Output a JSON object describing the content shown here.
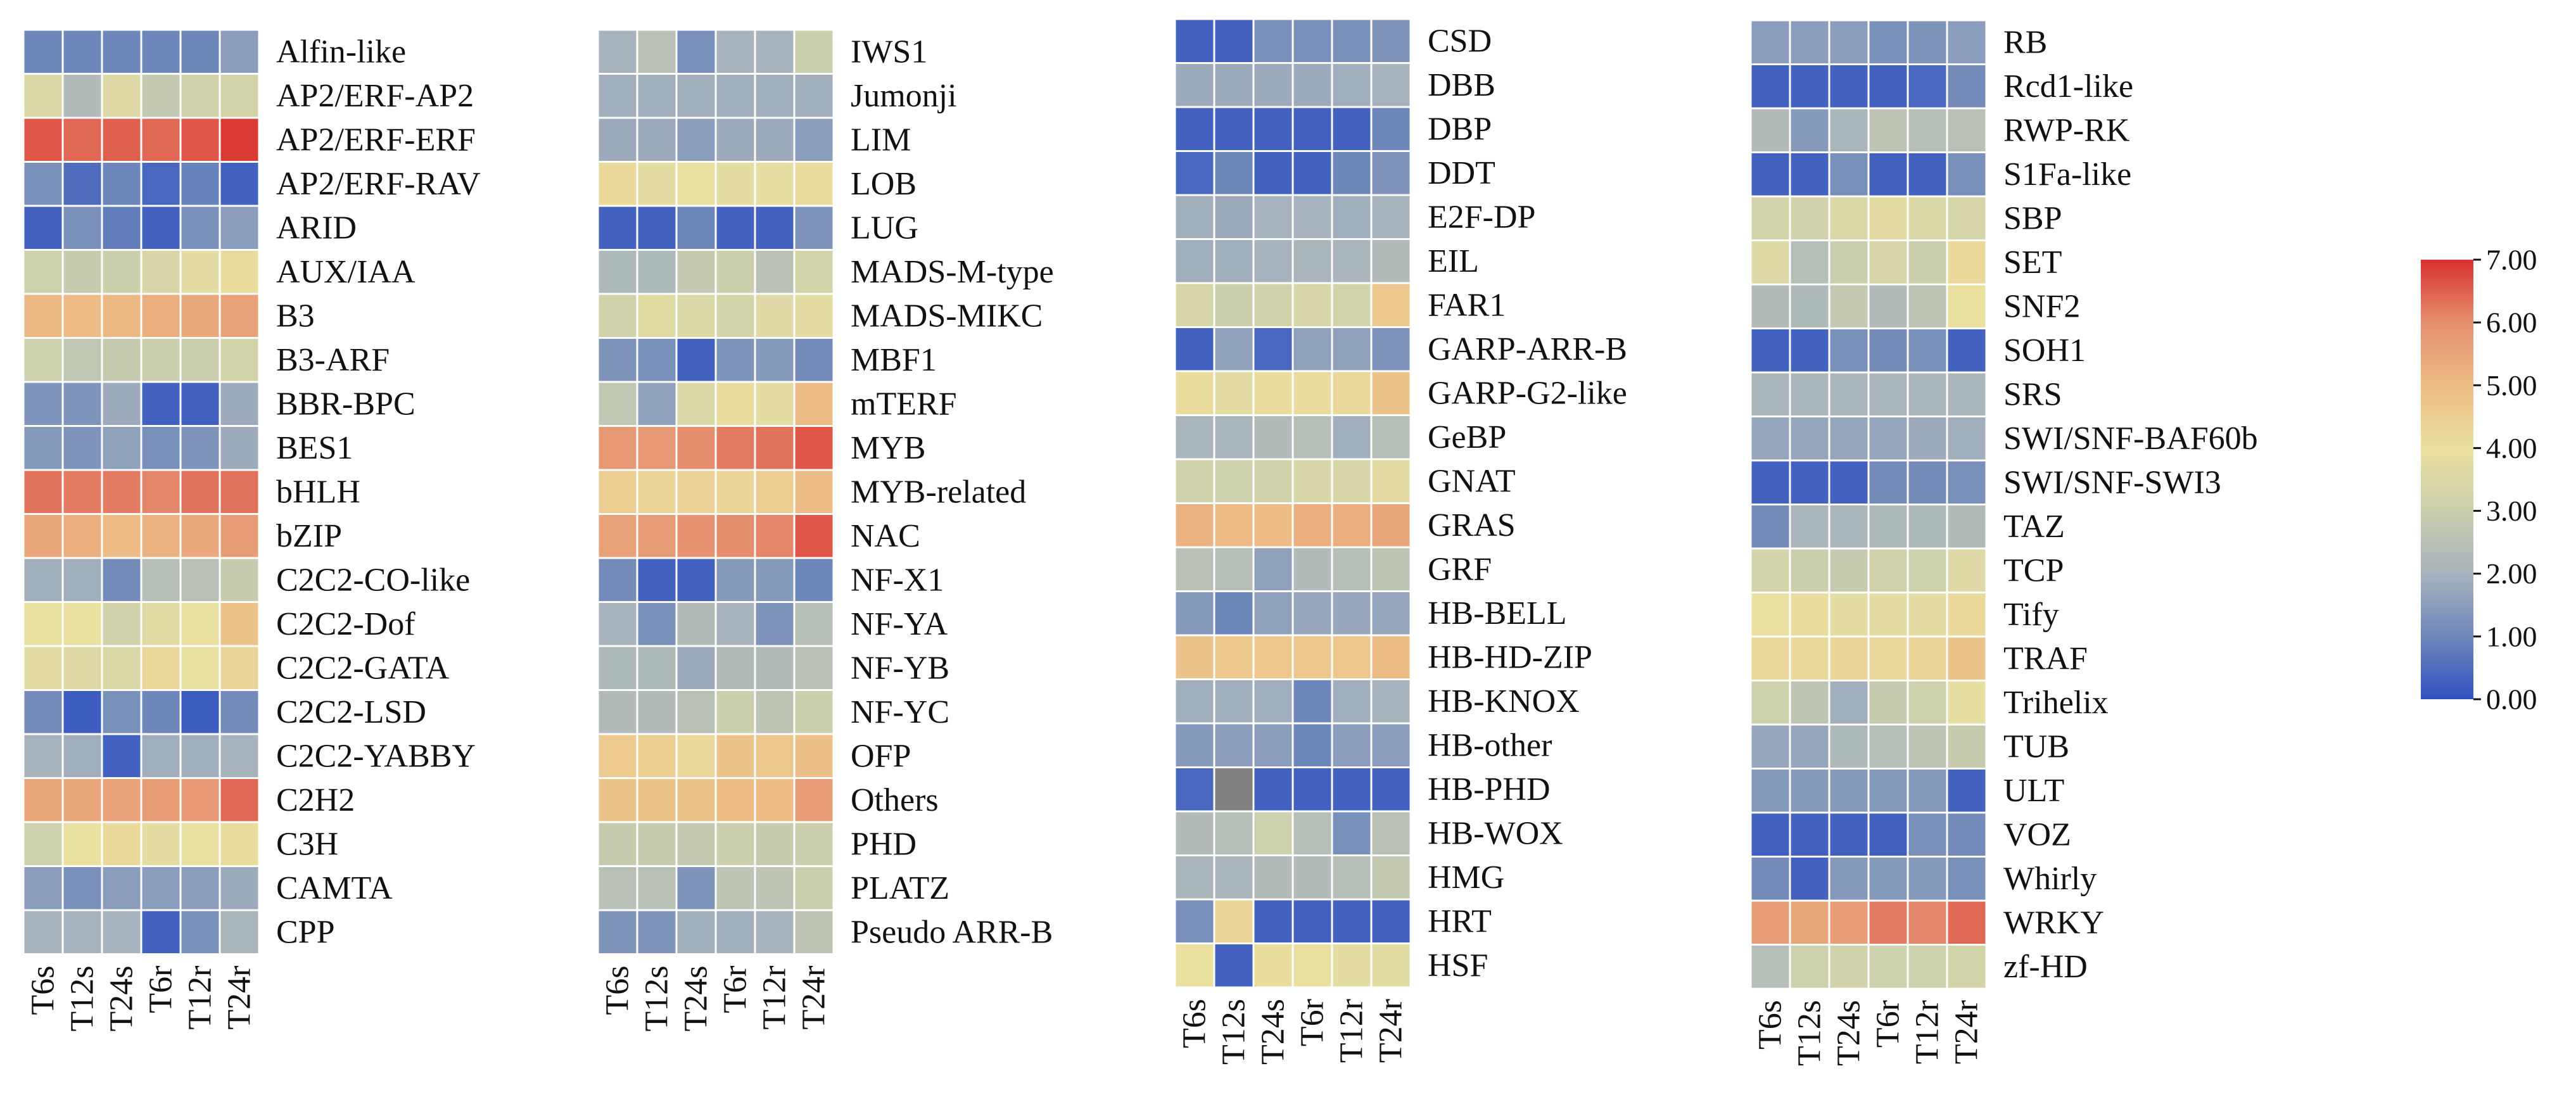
{
  "colors": {
    "stops": [
      "#3151c0",
      "#6e87ba",
      "#a7b3bd",
      "#cbcfae",
      "#eae0a0",
      "#edbc86",
      "#e58f6f",
      "#d9312e"
    ],
    "na": "#808080",
    "grid": "#ffffff"
  },
  "chart_data": {
    "type": "heatmap",
    "colorbar": {
      "vmin": 0,
      "vmax": 7,
      "ticks": [
        "0.00",
        "1.00",
        "2.00",
        "3.00",
        "4.00",
        "5.00",
        "6.00",
        "7.00"
      ]
    },
    "columns": [
      "T6s",
      "T12s",
      "T24s",
      "T6r",
      "T12r",
      "T24r"
    ],
    "panels": [
      {
        "rows": [
          "Alfin-like",
          "AP2/ERF-AP2",
          "AP2/ERF-ERF",
          "AP2/ERF-RAV",
          "ARID",
          "AUX/IAA",
          "B3",
          "B3-ARF",
          "BBR-BPC",
          "BES1",
          "bHLH",
          "bZIP",
          "C2C2-CO-like",
          "C2C2-Dof",
          "C2C2-GATA",
          "C2C2-LSD",
          "C2C2-YABBY",
          "C2H2",
          "C3H",
          "CAMTA",
          "CPP"
        ],
        "values": [
          [
            1.0,
            1.0,
            1.0,
            1.0,
            1.0,
            1.5
          ],
          [
            3.5,
            2.3,
            3.6,
            2.8,
            3.2,
            3.3
          ],
          [
            6.6,
            6.4,
            6.5,
            6.4,
            6.6,
            6.9
          ],
          [
            1.2,
            0.5,
            1.0,
            0.4,
            0.9,
            0.3
          ],
          [
            0.3,
            1.2,
            0.8,
            0.3,
            1.2,
            1.5
          ],
          [
            3.1,
            2.9,
            3.0,
            3.4,
            3.8,
            4.1
          ],
          [
            5.1,
            5.0,
            5.1,
            5.3,
            5.4,
            5.6
          ],
          [
            3.1,
            2.7,
            2.9,
            3.0,
            3.0,
            3.3
          ],
          [
            1.3,
            1.3,
            1.8,
            0.3,
            0.3,
            1.8
          ],
          [
            1.4,
            1.3,
            1.6,
            1.2,
            1.3,
            1.8
          ],
          [
            6.3,
            6.2,
            6.2,
            6.1,
            6.3,
            6.3
          ],
          [
            5.5,
            5.3,
            5.0,
            5.2,
            5.4,
            5.7
          ],
          [
            1.9,
            1.9,
            1.1,
            2.4,
            2.5,
            2.9
          ],
          [
            4.0,
            4.0,
            3.2,
            3.7,
            4.0,
            4.8
          ],
          [
            3.8,
            3.6,
            3.5,
            4.2,
            4.0,
            4.3
          ],
          [
            1.1,
            0.2,
            1.2,
            1.0,
            0.2,
            1.1
          ],
          [
            2.0,
            1.9,
            0.3,
            1.9,
            1.9,
            2.0
          ],
          [
            5.5,
            5.5,
            5.6,
            5.7,
            5.8,
            6.4
          ],
          [
            3.1,
            4.0,
            4.2,
            3.8,
            4.0,
            4.1
          ],
          [
            1.5,
            1.2,
            1.5,
            1.5,
            1.5,
            1.8
          ],
          [
            2.0,
            2.0,
            2.0,
            0.3,
            1.2,
            2.1
          ]
        ]
      },
      {
        "rows": [
          "IWS1",
          "Jumonji",
          "LIM",
          "LOB",
          "LUG",
          "MADS-M-type",
          "MADS-MIKC",
          "MBF1",
          "mTERF",
          "MYB",
          "MYB-related",
          "NAC",
          "NF-X1",
          "NF-YA",
          "NF-YB",
          "NF-YC",
          "OFP",
          "Others",
          "PHD",
          "PLATZ",
          "Pseudo ARR-B"
        ],
        "values": [
          [
            2.0,
            2.5,
            1.2,
            2.0,
            2.0,
            3.0
          ],
          [
            1.9,
            1.9,
            1.9,
            1.9,
            1.9,
            1.9
          ],
          [
            1.8,
            1.8,
            1.5,
            1.8,
            1.8,
            1.5
          ],
          [
            4.2,
            3.8,
            4.0,
            3.8,
            3.9,
            4.1
          ],
          [
            0.3,
            0.3,
            1.0,
            0.3,
            0.3,
            1.3
          ],
          [
            2.2,
            2.2,
            2.8,
            3.0,
            2.5,
            3.3
          ],
          [
            3.2,
            3.7,
            3.5,
            3.3,
            3.6,
            3.8
          ],
          [
            1.3,
            1.2,
            0.3,
            1.3,
            1.4,
            1.1
          ],
          [
            2.7,
            1.6,
            3.5,
            4.1,
            3.8,
            5.0
          ],
          [
            5.8,
            5.8,
            6.0,
            6.2,
            6.3,
            6.6
          ],
          [
            4.5,
            4.3,
            4.4,
            4.3,
            4.5,
            5.0
          ],
          [
            5.6,
            5.7,
            5.9,
            6.0,
            6.1,
            6.6
          ],
          [
            1.1,
            0.3,
            0.3,
            1.4,
            1.4,
            1.0
          ],
          [
            2.0,
            1.2,
            2.3,
            2.0,
            1.3,
            2.4
          ],
          [
            2.2,
            2.2,
            1.8,
            2.3,
            2.3,
            2.5
          ],
          [
            2.3,
            2.3,
            2.5,
            3.0,
            2.6,
            3.0
          ],
          [
            4.6,
            4.5,
            4.2,
            4.8,
            4.7,
            4.9
          ],
          [
            4.8,
            4.8,
            4.8,
            5.0,
            5.0,
            5.7
          ],
          [
            2.9,
            2.9,
            2.8,
            3.0,
            2.9,
            3.0
          ],
          [
            2.5,
            2.5,
            1.3,
            2.6,
            2.6,
            3.0
          ],
          [
            1.3,
            1.3,
            1.9,
            1.9,
            2.0,
            2.6
          ]
        ]
      },
      {
        "rows": [
          "CSD",
          "DBB",
          "DBP",
          "DDT",
          "E2F-DP",
          "EIL",
          "FAR1",
          "GARP-ARR-B",
          "GARP-G2-like",
          "GeBP",
          "GNAT",
          "GRAS",
          "GRF",
          "HB-BELL",
          "HB-HD-ZIP",
          "HB-KNOX",
          "HB-other",
          "HB-PHD",
          "HB-WOX",
          "HMG",
          "HRT",
          "HSF"
        ],
        "values": [
          [
            0.3,
            0.3,
            1.2,
            1.2,
            1.2,
            1.3
          ],
          [
            1.8,
            1.8,
            1.8,
            1.8,
            1.9,
            2.0
          ],
          [
            0.3,
            0.3,
            0.3,
            0.3,
            0.3,
            1.0
          ],
          [
            0.4,
            1.0,
            0.3,
            0.3,
            1.0,
            1.3
          ],
          [
            1.9,
            1.8,
            2.0,
            2.0,
            1.9,
            2.0
          ],
          [
            1.9,
            1.9,
            2.0,
            2.1,
            2.1,
            2.3
          ],
          [
            3.4,
            3.0,
            3.2,
            3.4,
            3.3,
            4.7
          ],
          [
            0.3,
            1.6,
            0.4,
            1.6,
            1.6,
            1.3
          ],
          [
            4.1,
            3.8,
            4.1,
            4.1,
            4.2,
            4.8
          ],
          [
            2.1,
            2.1,
            2.3,
            2.4,
            1.9,
            2.4
          ],
          [
            3.2,
            3.1,
            3.2,
            3.4,
            3.4,
            3.8
          ],
          [
            5.2,
            5.0,
            5.0,
            5.3,
            5.3,
            5.5
          ],
          [
            2.5,
            2.4,
            1.6,
            2.3,
            2.4,
            2.6
          ],
          [
            1.4,
            1.0,
            1.6,
            1.7,
            1.7,
            1.7
          ],
          [
            4.8,
            4.7,
            4.7,
            4.7,
            4.7,
            5.0
          ],
          [
            1.9,
            1.9,
            1.9,
            1.0,
            1.9,
            2.0
          ],
          [
            1.4,
            1.5,
            1.5,
            1.0,
            1.5,
            1.5
          ],
          [
            0.4,
            null,
            0.3,
            0.3,
            0.3,
            0.3
          ],
          [
            2.3,
            2.4,
            3.1,
            2.4,
            1.2,
            2.5
          ],
          [
            2.1,
            2.1,
            2.3,
            2.3,
            2.4,
            2.8
          ],
          [
            1.2,
            4.3,
            0.3,
            0.3,
            0.3,
            0.3
          ],
          [
            4.0,
            0.3,
            4.1,
            4.0,
            3.8,
            3.7
          ]
        ]
      },
      {
        "rows": [
          "RB",
          "Rcd1-like",
          "RWP-RK",
          "S1Fa-like",
          "SBP",
          "SET",
          "SNF2",
          "SOH1",
          "SRS",
          "SWI/SNF-BAF60b",
          "SWI/SNF-SWI3",
          "TAZ",
          "TCP",
          "Tify",
          "TRAF",
          "Trihelix",
          "TUB",
          "ULT",
          "VOZ",
          "Whirly",
          "WRKY",
          "zf-HD"
        ],
        "values": [
          [
            1.5,
            1.5,
            1.5,
            1.2,
            1.3,
            1.5
          ],
          [
            0.3,
            0.3,
            0.3,
            0.3,
            0.4,
            1.1
          ],
          [
            2.3,
            1.4,
            2.1,
            2.6,
            2.4,
            2.5
          ],
          [
            0.3,
            0.3,
            1.2,
            0.3,
            0.3,
            1.2
          ],
          [
            3.3,
            3.2,
            3.5,
            3.8,
            3.5,
            3.4
          ],
          [
            3.6,
            2.4,
            3.0,
            3.4,
            3.0,
            4.2
          ],
          [
            2.3,
            2.2,
            2.8,
            2.3,
            2.6,
            4.0
          ],
          [
            0.3,
            0.3,
            1.2,
            1.1,
            1.2,
            0.3
          ],
          [
            2.1,
            2.1,
            2.1,
            2.1,
            2.1,
            2.1
          ],
          [
            1.7,
            1.7,
            1.7,
            1.7,
            1.8,
            1.9
          ],
          [
            0.3,
            0.3,
            0.3,
            1.1,
            1.1,
            1.2
          ],
          [
            1.1,
            2.1,
            2.1,
            2.2,
            2.2,
            2.3
          ],
          [
            3.3,
            3.0,
            2.9,
            3.2,
            3.1,
            3.6
          ],
          [
            4.0,
            4.1,
            3.8,
            3.8,
            3.8,
            4.2
          ],
          [
            4.2,
            4.2,
            4.3,
            4.2,
            4.3,
            4.8
          ],
          [
            3.1,
            2.6,
            1.9,
            2.9,
            3.1,
            3.9
          ],
          [
            1.7,
            1.7,
            2.2,
            2.4,
            2.6,
            2.9
          ],
          [
            1.4,
            1.4,
            1.4,
            1.4,
            1.4,
            0.3
          ],
          [
            0.3,
            0.3,
            0.3,
            0.3,
            1.2,
            1.1
          ],
          [
            1.1,
            0.3,
            1.4,
            1.4,
            1.4,
            1.2
          ],
          [
            5.7,
            5.5,
            5.7,
            6.2,
            6.1,
            6.4
          ],
          [
            2.4,
            3.1,
            3.2,
            3.1,
            3.1,
            3.3
          ]
        ]
      }
    ]
  }
}
